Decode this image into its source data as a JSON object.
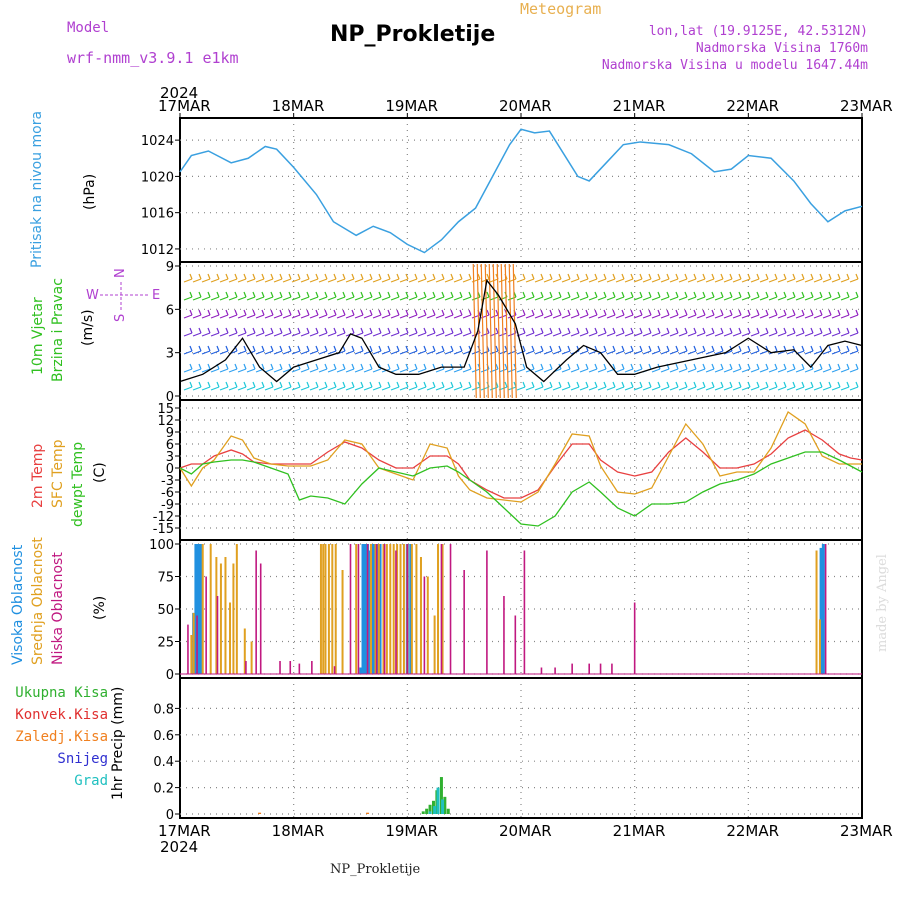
{
  "header": {
    "model_label": "Model",
    "model_name": "wrf-nmm_v3.9.1 e1km",
    "meteogram": "Meteogram",
    "station": "NP_Prokletije",
    "lonlat": "lon,lat (19.9125E, 42.5312N)",
    "elevation": "Nadmorska Visina 1760m",
    "model_elevation": "Nadmorska Visina u modelu 1647.44m",
    "year_top": "2024",
    "year_bottom": "2024",
    "footer_station": "NP_Prokletije",
    "credit": "made by Angel"
  },
  "dates": [
    "17MAR",
    "18MAR",
    "19MAR",
    "20MAR",
    "21MAR",
    "22MAR",
    "23MAR"
  ],
  "panels": {
    "pressure": {
      "label": "Pritisak na nivou mora",
      "unit": "(hPa)"
    },
    "wind": {
      "label1": "10m Vjetar",
      "label2": "Brzina i Pravac",
      "unit": "(m/s)",
      "compass_n": "N",
      "compass_s": "S",
      "compass_w": "W",
      "compass_e": "E"
    },
    "temp": {
      "label1": "2m Temp",
      "label2": "SFC Temp",
      "label3": "dewpt Temp",
      "unit": "(C)"
    },
    "cloud": {
      "label1": "Visoka Oblacnost",
      "label2": "Srednja Oblacnost",
      "label3": "Niska Oblacnost",
      "unit": "(%)"
    },
    "precip": {
      "labels": [
        "Ukupna Kisa",
        "Konvek.Kisa",
        "Zaledj.Kisa",
        "Snijeg",
        "Grad"
      ],
      "unit": "1hr Precip (mm)"
    }
  },
  "colors": {
    "pressure": "#3aa0e0",
    "temp2m": "#e84040",
    "sfc": "#e0a020",
    "dew": "#30c020",
    "high_cloud": "#2090e0",
    "mid_cloud": "#e0a020",
    "low_cloud": "#c01880",
    "precip_total": "#30b030",
    "precip_conv": "#e03030",
    "precip_frz": "#f08020",
    "precip_snow": "#3030d0",
    "precip_hail": "#20c0c0",
    "title_purple": "#b040d0"
  },
  "chart_data": [
    {
      "type": "line",
      "title": "",
      "ylabel": "Pritisak na nivou mora (hPa)",
      "ylim": [
        1011,
        1026
      ],
      "yticks": [
        1012,
        1016,
        1020,
        1024
      ],
      "x_days": [
        0,
        0.1,
        0.25,
        0.45,
        0.6,
        0.75,
        0.85,
        1.0,
        1.2,
        1.35,
        1.55,
        1.7,
        1.85,
        2.0,
        2.15,
        2.3,
        2.45,
        2.6,
        2.75,
        2.9,
        3.0,
        3.12,
        3.25,
        3.35,
        3.5,
        3.6,
        3.75,
        3.9,
        4.05,
        4.3,
        4.5,
        4.7,
        4.85,
        5.0,
        5.2,
        5.4,
        5.55,
        5.7,
        5.85,
        6.0
      ],
      "series": [
        {
          "values": [
            1020.5,
            1022.3,
            1022.8,
            1021.5,
            1022.0,
            1023.3,
            1023.0,
            1021.0,
            1018.0,
            1015.0,
            1013.5,
            1014.5,
            1013.8,
            1012.5,
            1011.6,
            1013.0,
            1015.0,
            1016.5,
            1020.0,
            1023.5,
            1025.2,
            1024.8,
            1025.0,
            1023.0,
            1020.0,
            1019.5,
            1021.5,
            1023.5,
            1023.8,
            1023.5,
            1022.5,
            1020.5,
            1020.8,
            1022.3,
            1022.0,
            1019.5,
            1017.0,
            1015.0,
            1016.2,
            1016.7
          ]
        }
      ]
    },
    {
      "type": "line",
      "title": "",
      "ylabel": "10m Vjetar Brzina i Pravac (m/s)",
      "ylim": [
        0,
        9
      ],
      "yticks": [
        0,
        3,
        6,
        9
      ],
      "x_days": [
        0,
        0.2,
        0.4,
        0.55,
        0.7,
        0.85,
        1.0,
        1.2,
        1.4,
        1.5,
        1.6,
        1.75,
        1.9,
        2.1,
        2.3,
        2.5,
        2.62,
        2.7,
        2.8,
        2.95,
        3.05,
        3.2,
        3.4,
        3.55,
        3.7,
        3.85,
        4.0,
        4.2,
        4.5,
        4.8,
        5.0,
        5.2,
        5.4,
        5.55,
        5.7,
        5.85,
        6.0
      ],
      "series": [
        {
          "values": [
            1.0,
            1.5,
            2.5,
            4.0,
            2.0,
            1.0,
            2.0,
            2.5,
            3.0,
            4.3,
            4.0,
            2.0,
            1.5,
            1.5,
            2.0,
            2.0,
            4.5,
            8.0,
            7.0,
            5.0,
            2.0,
            1.0,
            2.5,
            3.5,
            3.0,
            1.5,
            1.5,
            2.0,
            2.5,
            3.0,
            4.0,
            3.0,
            3.2,
            2.0,
            3.5,
            3.8,
            3.5
          ]
        }
      ]
    },
    {
      "type": "line",
      "title": "",
      "ylabel": "Temp (C)",
      "ylim": [
        -17,
        16
      ],
      "yticks": [
        -15,
        -12,
        -9,
        -6,
        -3,
        0,
        3,
        6,
        9,
        12,
        15
      ],
      "x_days": [
        0,
        0.1,
        0.2,
        0.3,
        0.45,
        0.55,
        0.65,
        0.8,
        0.95,
        1.05,
        1.15,
        1.3,
        1.45,
        1.6,
        1.75,
        1.9,
        2.05,
        2.2,
        2.35,
        2.45,
        2.55,
        2.7,
        2.85,
        3.0,
        3.15,
        3.3,
        3.45,
        3.6,
        3.7,
        3.85,
        4.0,
        4.15,
        4.3,
        4.45,
        4.6,
        4.75,
        4.9,
        5.05,
        5.2,
        5.35,
        5.5,
        5.65,
        5.8,
        5.9,
        6.0
      ],
      "series": [
        {
          "name": "2m Temp",
          "values": [
            0,
            1.0,
            1.0,
            3.0,
            4.5,
            3.5,
            1.5,
            1.0,
            1.0,
            1.0,
            1.0,
            4.0,
            6.5,
            5.0,
            2.0,
            0.0,
            0.0,
            3.0,
            3.0,
            1.0,
            -3.0,
            -5.5,
            -7.5,
            -7.5,
            -5.5,
            0.5,
            6.0,
            6.0,
            2.0,
            -1.0,
            -2.0,
            -1.0,
            4.0,
            7.5,
            4.0,
            0.0,
            0.0,
            1.0,
            3.5,
            7.5,
            9.5,
            7.0,
            3.5,
            2.5,
            2.0
          ]
        },
        {
          "name": "SFC Temp",
          "values": [
            0,
            -4.5,
            0.0,
            2.0,
            8.0,
            7.0,
            2.5,
            1.0,
            0.5,
            0.5,
            0.5,
            2.0,
            7.0,
            6.0,
            0.0,
            -1.5,
            -3.0,
            6.0,
            5.0,
            -2.0,
            -5.5,
            -7.5,
            -8.0,
            -8.5,
            -6.0,
            1.0,
            8.5,
            8.0,
            0.5,
            -6.0,
            -6.5,
            -5.0,
            3.0,
            11.0,
            6.0,
            -2.0,
            -1.0,
            -1.0,
            5.0,
            14.0,
            11.0,
            3.0,
            1.0,
            1.0,
            1.0
          ]
        },
        {
          "name": "dewpt Temp",
          "values": [
            0,
            -1.5,
            1.0,
            1.5,
            2.0,
            2.0,
            1.5,
            0.0,
            -1.5,
            -8.0,
            -7.0,
            -7.5,
            -9.0,
            -4.0,
            0.0,
            -1.0,
            -2.0,
            0.0,
            0.5,
            -1.0,
            -3.0,
            -6.0,
            -10.0,
            -14.0,
            -14.5,
            -12.0,
            -6.0,
            -3.5,
            -6.0,
            -10.0,
            -12.0,
            -9.0,
            -9.0,
            -8.5,
            -6.0,
            -4.0,
            -3.0,
            -1.5,
            1.0,
            2.5,
            4.0,
            4.0,
            2.0,
            0.5,
            -1.0
          ]
        }
      ]
    },
    {
      "type": "bar",
      "title": "",
      "ylabel": "Oblacnost (%)",
      "ylim": [
        0,
        100
      ],
      "yticks": [
        0,
        25,
        50,
        75,
        100
      ],
      "series": [
        {
          "name": "Visoka Oblacnost",
          "x_days": [
            0.12,
            0.14,
            0.16,
            0.18,
            1.59,
            1.61,
            1.63,
            1.65,
            1.67,
            1.7,
            1.73,
            1.76,
            2.0,
            2.03,
            5.64,
            5.66
          ],
          "values": [
            47,
            100,
            100,
            100,
            5,
            100,
            100,
            100,
            95,
            100,
            100,
            100,
            100,
            100,
            97,
            100
          ]
        },
        {
          "name": "Srednja Oblacnost",
          "x_days": [
            0.1,
            0.12,
            0.2,
            0.27,
            0.32,
            0.36,
            0.4,
            0.44,
            0.47,
            0.5,
            0.57,
            0.63,
            1.24,
            1.26,
            1.28,
            1.31,
            1.34,
            1.37,
            1.43,
            1.55,
            1.68,
            1.72,
            1.75,
            1.79,
            1.82,
            1.85,
            1.88,
            1.91,
            1.94,
            1.97,
            2.0,
            2.04,
            2.08,
            2.12,
            2.18,
            2.24,
            2.27,
            2.31,
            5.6,
            5.63
          ],
          "values": [
            30,
            47,
            100,
            100,
            90,
            85,
            90,
            55,
            85,
            100,
            35,
            25,
            100,
            100,
            100,
            100,
            100,
            100,
            80,
            100,
            100,
            100,
            100,
            100,
            100,
            100,
            100,
            100,
            100,
            100,
            100,
            100,
            100,
            90,
            75,
            45,
            100,
            100,
            95,
            42
          ]
        },
        {
          "name": "Niska Oblacnost",
          "x_days": [
            0.07,
            0.15,
            0.23,
            0.33,
            0.58,
            0.67,
            0.71,
            0.88,
            0.97,
            1.05,
            1.16,
            1.36,
            1.5,
            1.57,
            1.65,
            1.73,
            1.8,
            1.9,
            2.0,
            2.15,
            2.3,
            2.38,
            2.5,
            2.7,
            2.85,
            2.95,
            3.03,
            3.18,
            3.3,
            3.45,
            3.6,
            3.7,
            3.8,
            4.0,
            5.68
          ],
          "values": [
            38,
            45,
            75,
            60,
            10,
            95,
            85,
            10,
            10,
            8,
            10,
            6,
            100,
            100,
            100,
            100,
            100,
            95,
            100,
            75,
            100,
            100,
            80,
            95,
            60,
            45,
            95,
            5,
            5,
            8,
            8,
            8,
            8,
            55,
            100
          ]
        }
      ]
    },
    {
      "type": "bar",
      "title": "",
      "ylabel": "1hr Precip (mm)",
      "ylim": [
        0,
        1.0
      ],
      "yticks": [
        0,
        0.2,
        0.4,
        0.6,
        0.8
      ],
      "series": [
        {
          "name": "Ukupna Kisa",
          "x_days": [
            2.14,
            2.17,
            2.2,
            2.23,
            2.26,
            2.3,
            2.33,
            2.36
          ],
          "values": [
            0.02,
            0.04,
            0.07,
            0.1,
            0.18,
            0.28,
            0.13,
            0.04
          ]
        },
        {
          "name": "Grad",
          "x_days": [
            2.2,
            2.24,
            2.27,
            2.31
          ],
          "values": [
            0.02,
            0.06,
            0.2,
            0.11
          ]
        },
        {
          "name": "Zaledj.Kisa",
          "x_days": [
            0.7,
            1.65
          ],
          "values": [
            0.01,
            0.01
          ]
        }
      ]
    }
  ]
}
